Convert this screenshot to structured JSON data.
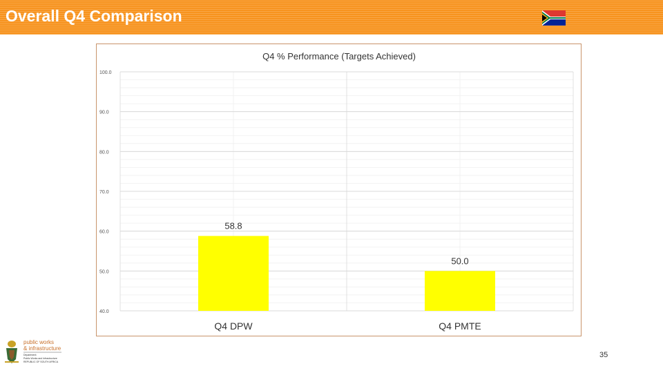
{
  "slide": {
    "title": "Overall Q4 Comparison",
    "page_number": "35",
    "header_color": "#f7931e",
    "flag_icon": "south-africa-flag-icon",
    "logo": {
      "icon": "coat-of-arms-icon",
      "line1": "public works",
      "line2": "& infrastructure",
      "line3": "Department:",
      "line4": "Public Works and Infrastructure",
      "line5": "REPUBLIC OF SOUTH AFRICA"
    }
  },
  "chart_data": {
    "type": "bar",
    "title": "Q4 % Performance (Targets Achieved)",
    "categories": [
      "Q4 DPW",
      "Q4 PMTE"
    ],
    "values": [
      58.8,
      50.0
    ],
    "data_labels": [
      "58.8",
      "50.0"
    ],
    "ylim": [
      40,
      100
    ],
    "yticks": [
      "40.0",
      "50.0",
      "60.0",
      "70.0",
      "80.0",
      "90.0",
      "100.0"
    ],
    "bar_color": "#ffff00",
    "grid": true,
    "xlabel": "",
    "ylabel": ""
  }
}
